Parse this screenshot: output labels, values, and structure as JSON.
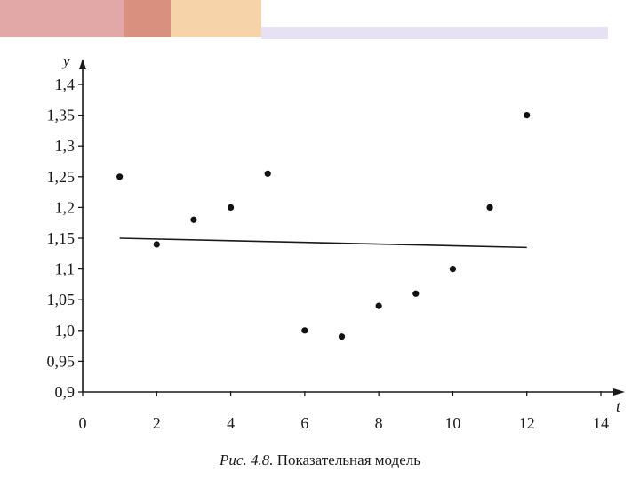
{
  "colors": {
    "deco_pink": "#e2a7a7",
    "deco_red": "#d9907f",
    "deco_peach": "#f6d3a8",
    "deco_lavender": "#e6e2f3",
    "axis": "#1a1a1a",
    "points": "#111111",
    "trend": "#1a1a1a"
  },
  "chart_data": {
    "type": "scatter",
    "x": [
      1,
      2,
      3,
      4,
      5,
      6,
      7,
      8,
      9,
      10,
      11,
      12
    ],
    "y": [
      1.25,
      1.14,
      1.18,
      1.2,
      1.255,
      1.0,
      0.99,
      1.04,
      1.06,
      1.1,
      1.2,
      1.35
    ],
    "trend_line": {
      "x": [
        1,
        12
      ],
      "y": [
        1.15,
        1.135
      ]
    },
    "xlabel": "t",
    "ylabel": "y",
    "xlim": [
      0,
      14
    ],
    "ylim": [
      0.9,
      1.4
    ],
    "x_ticks": [
      0,
      2,
      4,
      6,
      8,
      10,
      12,
      14
    ],
    "x_tick_labels": [
      "0",
      "2",
      "4",
      "6",
      "8",
      "10",
      "12",
      "14"
    ],
    "y_ticks": [
      0.9,
      0.95,
      1.0,
      1.05,
      1.1,
      1.15,
      1.2,
      1.25,
      1.3,
      1.35,
      1.4
    ],
    "y_tick_labels": [
      "0,9",
      "0,95",
      "1,0",
      "1,05",
      "1,1",
      "1,15",
      "1,2",
      "1,25",
      "1,3",
      "1,35",
      "1,4"
    ],
    "grid": false,
    "legend": "none"
  },
  "caption": {
    "fig_no": "Рис. 4.8.",
    "text": "Показательная модель"
  }
}
